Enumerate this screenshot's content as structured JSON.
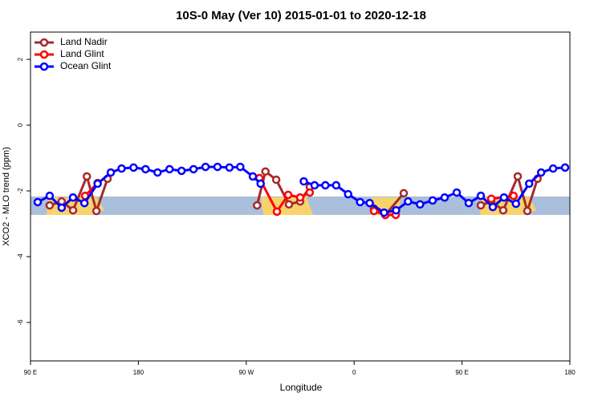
{
  "chart_data": {
    "type": "line",
    "title": "10S-0 May (Ver 10)   2015-01-01 to 2020-12-18",
    "x_label": "Longitude",
    "y_label": "XCO2 - MLO trend (ppm)",
    "xlim": [
      90,
      540
    ],
    "ylim": [
      -7.17,
      2.83
    ],
    "xticks": [
      {
        "value": 90,
        "label": "90 E"
      },
      180,
      {
        "value": 270,
        "label": "90 W"
      },
      {
        "value": 360,
        "label": "0"
      },
      {
        "value": 450,
        "label": "90 E"
      },
      {
        "value": 540,
        "label": "180"
      }
    ],
    "yticks": [
      2,
      0,
      -2,
      -4,
      -6
    ],
    "band": [
      -2.73,
      -2.17
    ],
    "band_color": "#a9bfdc",
    "legend": "top-left",
    "series": [
      {
        "name": "Land Nadir",
        "color": "#a52a2a",
        "x": [
          106,
          116,
          125.5,
          137,
          145,
          154.3,
          200,
          279,
          286,
          295,
          305.6,
          315,
          323,
          350,
          376.6,
          386,
          401.4,
          430,
          465.7,
          474.4,
          484.4,
          496.5,
          504.5,
          513
        ],
        "values": [
          -2.44,
          -2.32,
          -2.59,
          -1.56,
          -2.61,
          -1.63,
          null,
          -2.44,
          -1.41,
          -1.66,
          -2.41,
          -2.32,
          -1.88,
          null,
          -2.54,
          -2.73,
          -2.07,
          null,
          -2.44,
          -2.32,
          -2.59,
          -1.56,
          -2.61,
          -1.63
        ]
      },
      {
        "name": "Land Glint",
        "color": "#ff0000",
        "x": [
          135.5,
          146,
          200,
          281,
          295.6,
          305,
          315,
          323,
          350,
          376.6,
          386,
          394.7,
          430,
          474.4,
          493
        ],
        "values": [
          -2.15,
          -1.76,
          null,
          -1.61,
          -2.63,
          -2.12,
          -2.2,
          -2.05,
          null,
          -2.61,
          -2.73,
          -2.73,
          null,
          -2.24,
          -2.15
        ]
      },
      {
        "name": "Ocean Glint",
        "color": "#0000ff",
        "x": [
          96,
          106,
          116,
          125.5,
          135,
          146,
          157,
          166,
          176,
          186,
          196,
          206,
          216,
          226,
          236,
          246,
          256,
          265,
          275.5,
          282,
          300,
          318,
          327,
          336,
          345,
          355,
          365,
          373,
          385,
          395,
          405,
          415,
          425.5,
          435.5,
          445.6,
          455.6,
          465.7,
          475.7,
          485,
          495,
          506,
          516,
          526,
          536
        ],
        "values": [
          -2.34,
          -2.15,
          -2.51,
          -2.2,
          -2.37,
          -1.78,
          -1.44,
          -1.32,
          -1.29,
          -1.34,
          -1.44,
          -1.34,
          -1.39,
          -1.34,
          -1.27,
          -1.27,
          -1.29,
          -1.27,
          -1.56,
          -1.78,
          null,
          -1.71,
          -1.83,
          -1.83,
          -1.83,
          -2.1,
          -2.34,
          -2.37,
          -2.66,
          -2.59,
          -2.32,
          -2.41,
          -2.29,
          -2.2,
          -2.05,
          -2.37,
          -2.15,
          -2.49,
          -2.2,
          -2.39,
          -1.78,
          -1.44,
          -1.32,
          -1.29
        ]
      }
    ]
  }
}
